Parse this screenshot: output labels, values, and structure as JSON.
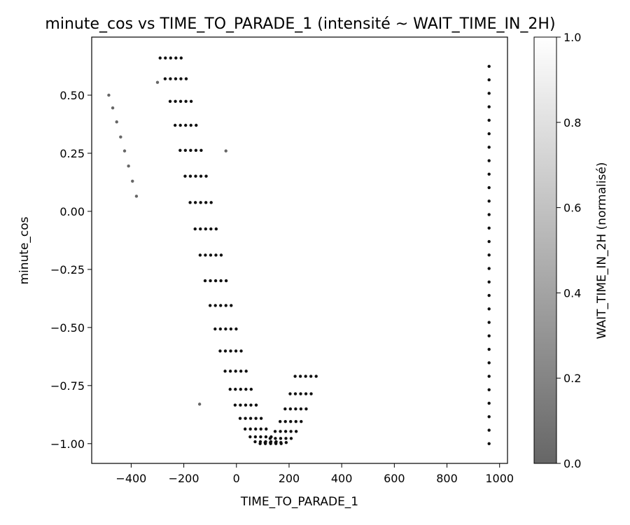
{
  "chart_data": {
    "type": "scatter",
    "title": "minute_cos vs TIME_TO_PARADE_1 (intensité ~ WAIT_TIME_IN_2H)",
    "xlabel": "TIME_TO_PARADE_1",
    "ylabel": "minute_cos",
    "xlim": [
      -550,
      1030
    ],
    "ylim": [
      -1.085,
      0.75
    ],
    "xticks": [
      -400,
      -200,
      0,
      200,
      400,
      600,
      800,
      1000
    ],
    "xtick_labels": [
      "−400",
      "−200",
      "0",
      "200",
      "400",
      "600",
      "800",
      "1000"
    ],
    "yticks": [
      0.5,
      0.25,
      0.0,
      -0.25,
      -0.5,
      -0.75,
      -1.0
    ],
    "ytick_labels": [
      "0.50",
      "0.25",
      "0.00",
      "−0.25",
      "−0.50",
      "−0.75",
      "−1.00"
    ],
    "grid": false,
    "colorbar": {
      "label": "WAIT_TIME_IN_2H (normalisé)",
      "range": [
        0.0,
        1.0
      ],
      "ticks": [
        0.0,
        0.2,
        0.4,
        0.6,
        0.8,
        1.0
      ],
      "tick_labels": [
        "0.0",
        "0.2",
        "0.4",
        "0.6",
        "0.8",
        "1.0"
      ],
      "color_low": "#666666",
      "color_high": "#ffffff"
    },
    "marker_color": "#111111",
    "isolated_points": [
      {
        "x": -485,
        "y": 0.5,
        "v": 0.1
      },
      {
        "x": -470,
        "y": 0.445,
        "v": 0.1
      },
      {
        "x": -455,
        "y": 0.385,
        "v": 0.1
      },
      {
        "x": -440,
        "y": 0.32,
        "v": 0.1
      },
      {
        "x": -425,
        "y": 0.26,
        "v": 0.1
      },
      {
        "x": -410,
        "y": 0.195,
        "v": 0.1
      },
      {
        "x": -395,
        "y": 0.13,
        "v": 0.1
      },
      {
        "x": -380,
        "y": 0.065,
        "v": 0.1
      },
      {
        "x": -140,
        "y": -0.83,
        "v": 0.1
      },
      {
        "x": -300,
        "y": 0.555,
        "v": 0.1
      },
      {
        "x": -40,
        "y": 0.26,
        "v": 0.1
      }
    ],
    "band_series": {
      "description": "Cosine-shaped band of parade-time points: minute_cos falls from ~0.66 to -1.0 then rises back to ~-0.71",
      "x_start": [
        -290,
        -270,
        -250,
        -230,
        -210
      ],
      "x_step": 19,
      "n_points_per_row": 28,
      "y_start": 0.66,
      "y_end_right": -0.71,
      "v": 0.0
    },
    "vertical_series": {
      "x": 960,
      "y_min": -1.0,
      "y_max": 0.66,
      "y_step": 0.058,
      "v": 0.0
    }
  }
}
